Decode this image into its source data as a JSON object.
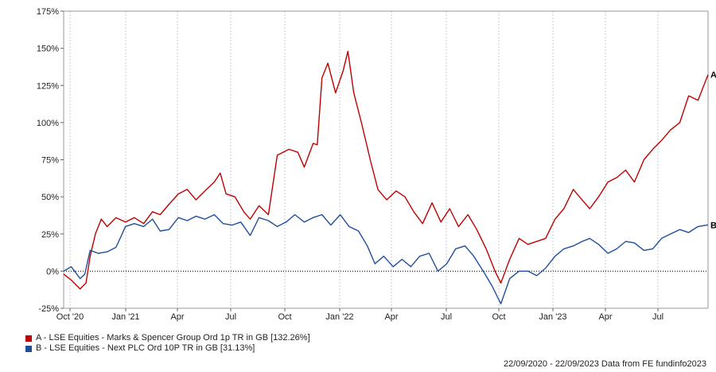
{
  "chart_data": {
    "type": "line",
    "x_ticks": [
      "Oct '20",
      "Jan '21",
      "Apr",
      "Jul",
      "Oct",
      "Jan '22",
      "Apr",
      "Jul",
      "Oct",
      "Jan '23",
      "Apr",
      "Jul"
    ],
    "y_ticks": [
      "175%",
      "150%",
      "125%",
      "100%",
      "75%",
      "50%",
      "25%",
      "0%",
      "-25%"
    ],
    "ylim": [
      -25,
      175
    ],
    "xlim": [
      "2020-09-22",
      "2023-09-22"
    ],
    "grid": "vertical dashed",
    "series": [
      {
        "name": "A - LSE Equities - Marks & Spencer Group Ord 1p TR in GB [132.26%]",
        "end_marker": "A",
        "color": "#c00000",
        "points": [
          [
            "2020-09-22",
            -2
          ],
          [
            "2020-10-05",
            -6
          ],
          [
            "2020-10-20",
            -12
          ],
          [
            "2020-10-30",
            -8
          ],
          [
            "2020-11-06",
            10
          ],
          [
            "2020-11-15",
            25
          ],
          [
            "2020-11-25",
            35
          ],
          [
            "2020-12-05",
            30
          ],
          [
            "2020-12-20",
            36
          ],
          [
            "2021-01-05",
            33
          ],
          [
            "2021-01-20",
            36
          ],
          [
            "2021-02-05",
            32
          ],
          [
            "2021-02-20",
            40
          ],
          [
            "2021-03-05",
            38
          ],
          [
            "2021-03-20",
            45
          ],
          [
            "2021-04-05",
            52
          ],
          [
            "2021-04-20",
            55
          ],
          [
            "2021-05-05",
            48
          ],
          [
            "2021-05-20",
            54
          ],
          [
            "2021-06-05",
            60
          ],
          [
            "2021-06-15",
            66
          ],
          [
            "2021-06-25",
            52
          ],
          [
            "2021-07-10",
            50
          ],
          [
            "2021-07-25",
            40
          ],
          [
            "2021-08-05",
            35
          ],
          [
            "2021-08-20",
            44
          ],
          [
            "2021-09-05",
            38
          ],
          [
            "2021-09-20",
            78
          ],
          [
            "2021-10-10",
            82
          ],
          [
            "2021-10-25",
            80
          ],
          [
            "2021-11-05",
            70
          ],
          [
            "2021-11-20",
            86
          ],
          [
            "2021-11-27",
            85
          ],
          [
            "2021-12-05",
            130
          ],
          [
            "2021-12-15",
            140
          ],
          [
            "2021-12-28",
            120
          ],
          [
            "2022-01-10",
            135
          ],
          [
            "2022-01-18",
            148
          ],
          [
            "2022-01-28",
            120
          ],
          [
            "2022-02-10",
            100
          ],
          [
            "2022-02-25",
            75
          ],
          [
            "2022-03-10",
            55
          ],
          [
            "2022-03-25",
            48
          ],
          [
            "2022-04-10",
            54
          ],
          [
            "2022-04-25",
            50
          ],
          [
            "2022-05-10",
            40
          ],
          [
            "2022-05-25",
            32
          ],
          [
            "2022-06-10",
            46
          ],
          [
            "2022-06-25",
            33
          ],
          [
            "2022-07-10",
            42
          ],
          [
            "2022-07-25",
            30
          ],
          [
            "2022-08-10",
            38
          ],
          [
            "2022-08-25",
            28
          ],
          [
            "2022-09-10",
            15
          ],
          [
            "2022-09-25",
            0
          ],
          [
            "2022-10-05",
            -8
          ],
          [
            "2022-10-20",
            8
          ],
          [
            "2022-11-05",
            22
          ],
          [
            "2022-11-20",
            18
          ],
          [
            "2022-12-05",
            20
          ],
          [
            "2022-12-20",
            22
          ],
          [
            "2023-01-05",
            35
          ],
          [
            "2023-01-20",
            42
          ],
          [
            "2023-02-05",
            55
          ],
          [
            "2023-02-20",
            48
          ],
          [
            "2023-03-05",
            42
          ],
          [
            "2023-03-20",
            50
          ],
          [
            "2023-04-05",
            60
          ],
          [
            "2023-04-20",
            63
          ],
          [
            "2023-05-05",
            68
          ],
          [
            "2023-05-20",
            60
          ],
          [
            "2023-06-05",
            75
          ],
          [
            "2023-06-20",
            82
          ],
          [
            "2023-07-05",
            88
          ],
          [
            "2023-07-20",
            95
          ],
          [
            "2023-08-05",
            100
          ],
          [
            "2023-08-20",
            118
          ],
          [
            "2023-09-05",
            115
          ],
          [
            "2023-09-22",
            132.26
          ]
        ]
      },
      {
        "name": "B - LSE Equities - Next PLC Ord 10P TR in GB [31.13%]",
        "end_marker": "B",
        "color": "#1f4e9c",
        "points": [
          [
            "2020-09-22",
            0
          ],
          [
            "2020-10-05",
            3
          ],
          [
            "2020-10-20",
            -5
          ],
          [
            "2020-10-28",
            -2
          ],
          [
            "2020-11-06",
            14
          ],
          [
            "2020-11-20",
            12
          ],
          [
            "2020-12-05",
            13
          ],
          [
            "2020-12-20",
            16
          ],
          [
            "2021-01-05",
            30
          ],
          [
            "2021-01-20",
            32
          ],
          [
            "2021-02-05",
            30
          ],
          [
            "2021-02-20",
            35
          ],
          [
            "2021-03-05",
            27
          ],
          [
            "2021-03-20",
            28
          ],
          [
            "2021-04-05",
            36
          ],
          [
            "2021-04-20",
            34
          ],
          [
            "2021-05-05",
            37
          ],
          [
            "2021-05-20",
            35
          ],
          [
            "2021-06-05",
            38
          ],
          [
            "2021-06-20",
            32
          ],
          [
            "2021-07-05",
            31
          ],
          [
            "2021-07-20",
            33
          ],
          [
            "2021-08-05",
            24
          ],
          [
            "2021-08-20",
            36
          ],
          [
            "2021-09-05",
            34
          ],
          [
            "2021-09-20",
            30
          ],
          [
            "2021-10-05",
            33
          ],
          [
            "2021-10-20",
            38
          ],
          [
            "2021-11-05",
            33
          ],
          [
            "2021-11-20",
            36
          ],
          [
            "2021-12-05",
            38
          ],
          [
            "2021-12-20",
            31
          ],
          [
            "2022-01-05",
            38
          ],
          [
            "2022-01-20",
            30
          ],
          [
            "2022-02-05",
            27
          ],
          [
            "2022-02-20",
            17
          ],
          [
            "2022-03-05",
            5
          ],
          [
            "2022-03-20",
            10
          ],
          [
            "2022-04-05",
            3
          ],
          [
            "2022-04-20",
            8
          ],
          [
            "2022-05-05",
            3
          ],
          [
            "2022-05-20",
            10
          ],
          [
            "2022-06-05",
            12
          ],
          [
            "2022-06-20",
            0
          ],
          [
            "2022-07-05",
            5
          ],
          [
            "2022-07-20",
            15
          ],
          [
            "2022-08-05",
            17
          ],
          [
            "2022-08-20",
            10
          ],
          [
            "2022-09-05",
            0
          ],
          [
            "2022-09-20",
            -10
          ],
          [
            "2022-10-05",
            -22
          ],
          [
            "2022-10-20",
            -5
          ],
          [
            "2022-11-05",
            0
          ],
          [
            "2022-11-20",
            0
          ],
          [
            "2022-12-05",
            -3
          ],
          [
            "2022-12-20",
            2
          ],
          [
            "2023-01-05",
            10
          ],
          [
            "2023-01-20",
            15
          ],
          [
            "2023-02-05",
            17
          ],
          [
            "2023-02-20",
            20
          ],
          [
            "2023-03-05",
            22
          ],
          [
            "2023-03-20",
            18
          ],
          [
            "2023-04-05",
            12
          ],
          [
            "2023-04-20",
            15
          ],
          [
            "2023-05-05",
            20
          ],
          [
            "2023-05-20",
            19
          ],
          [
            "2023-06-05",
            14
          ],
          [
            "2023-06-20",
            15
          ],
          [
            "2023-07-05",
            22
          ],
          [
            "2023-07-20",
            25
          ],
          [
            "2023-08-05",
            28
          ],
          [
            "2023-08-20",
            26
          ],
          [
            "2023-09-05",
            30
          ],
          [
            "2023-09-22",
            31.13
          ]
        ]
      }
    ]
  },
  "footer": {
    "text": "22/09/2020 - 22/09/2023 Data from FE fundinfo2023"
  }
}
